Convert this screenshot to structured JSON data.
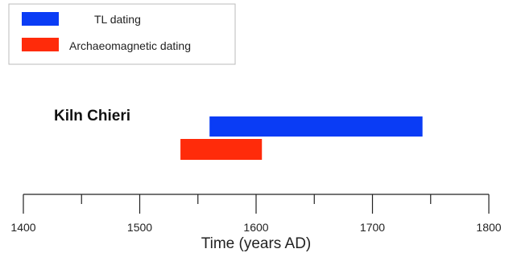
{
  "chart_data": {
    "type": "bar",
    "orientation": "horizontal-range",
    "category_label": "Kiln Chieri",
    "xlabel": "Time (years AD)",
    "xlim": [
      1400,
      1800
    ],
    "xticks": [
      1400,
      1500,
      1600,
      1700,
      1800
    ],
    "minor_xticks": [
      1450,
      1550,
      1650,
      1750
    ],
    "grid": false,
    "legend_position": "top-left",
    "series": [
      {
        "name": "TL dating",
        "color": "#0a3cf5",
        "start": 1560,
        "end": 1743
      },
      {
        "name": "Archaeomagnetic dating",
        "color": "#ff2b0a",
        "start": 1535,
        "end": 1605
      }
    ]
  }
}
